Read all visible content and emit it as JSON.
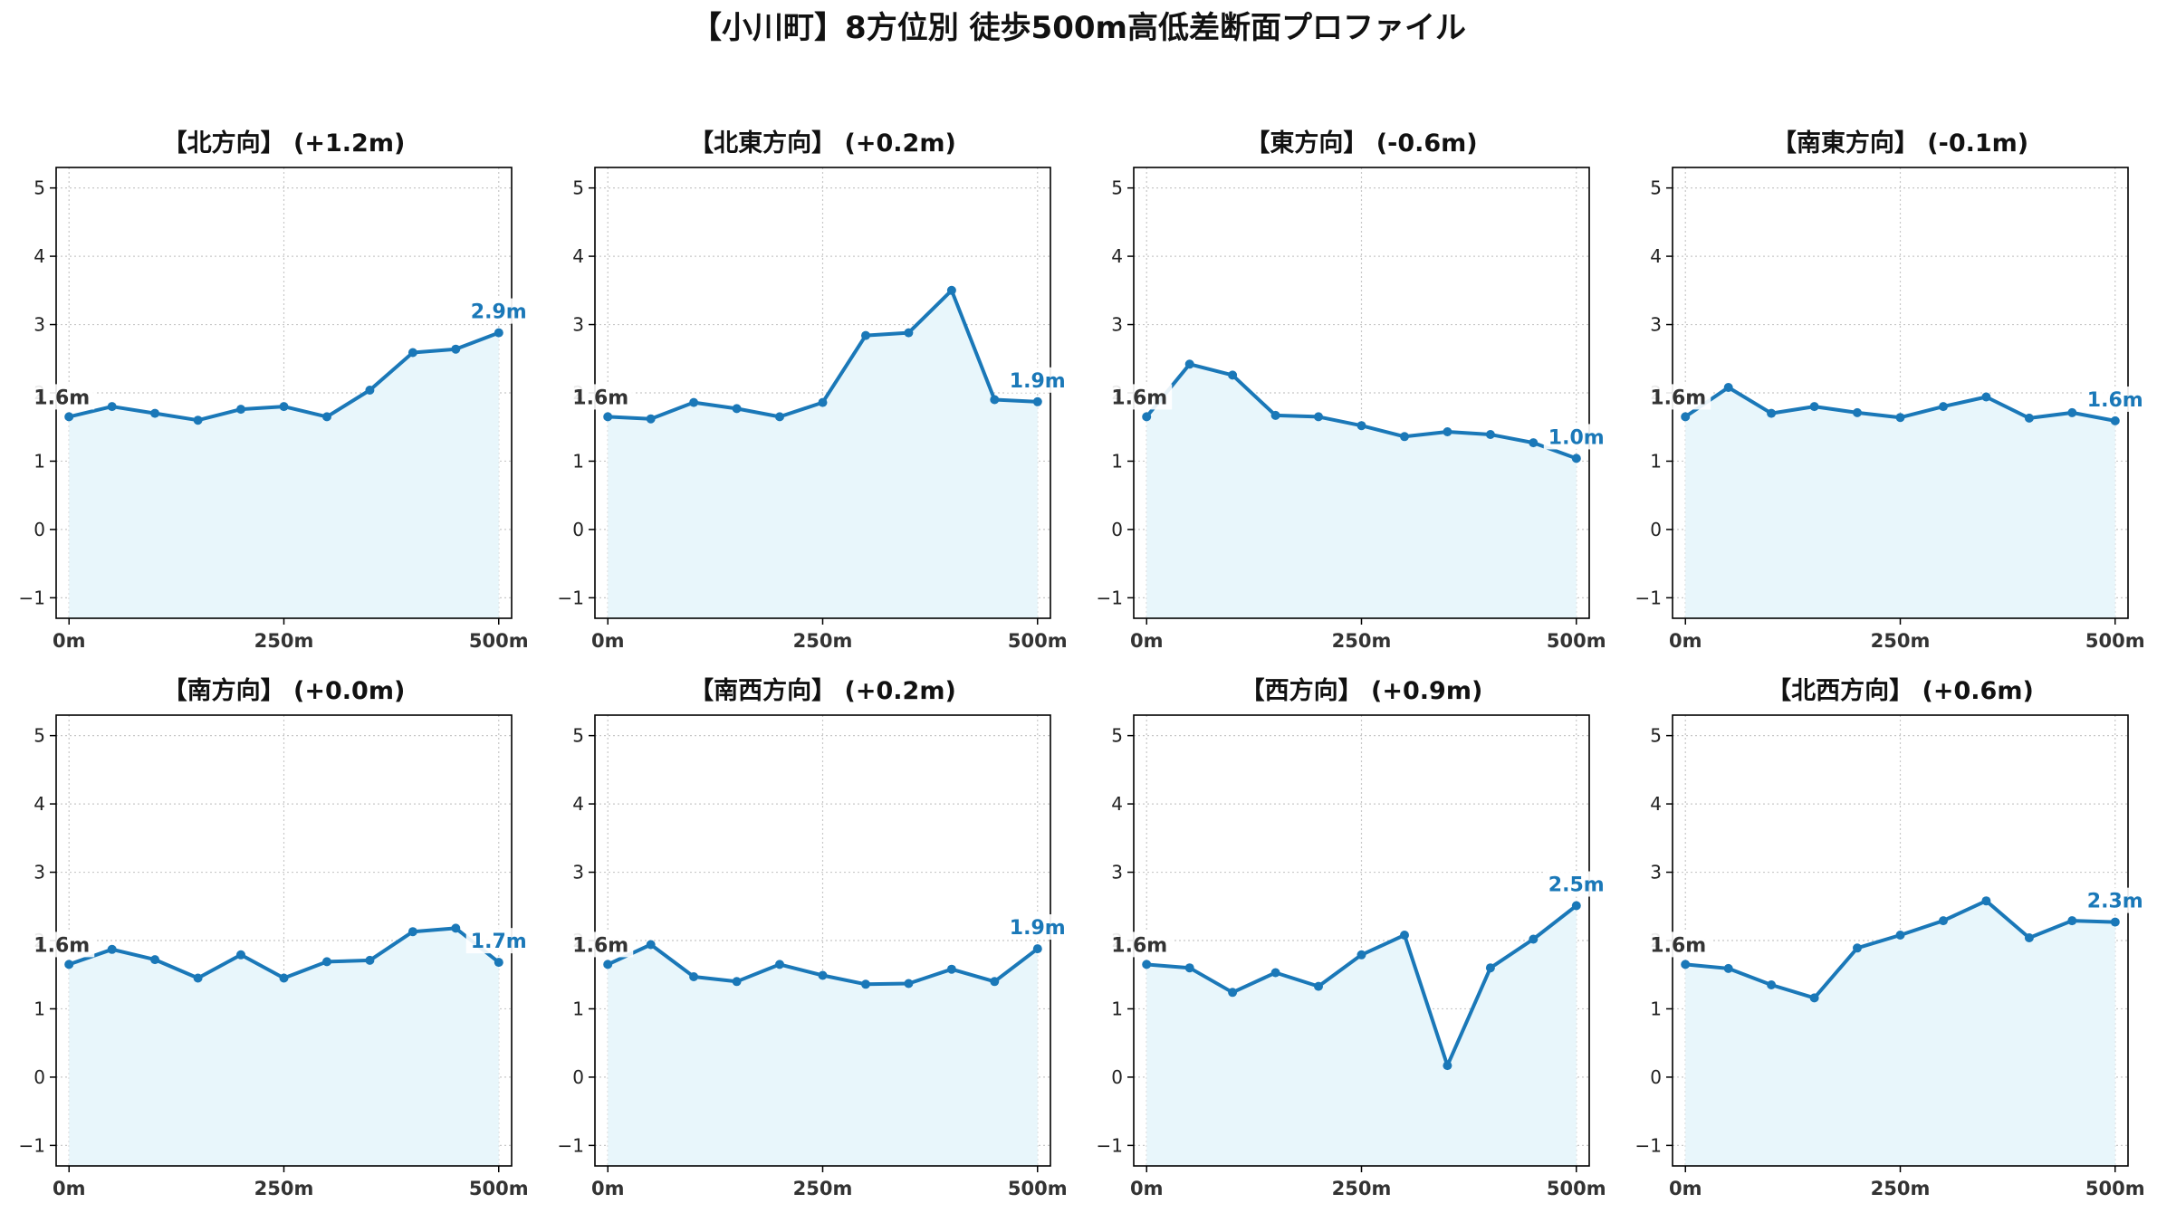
{
  "chart_data": {
    "title": "【小川町】8方位別 徒歩500m高低差断面プロファイル",
    "type": "line",
    "x": [
      0,
      50,
      100,
      150,
      200,
      250,
      300,
      350,
      400,
      450,
      500
    ],
    "xticks": [
      "0m",
      "250m",
      "500m"
    ],
    "xtick_values": [
      0,
      250,
      500
    ],
    "yticks": [
      "−1",
      "0",
      "1",
      "2",
      "3",
      "4",
      "5"
    ],
    "ytick_values": [
      -1,
      0,
      1,
      2,
      3,
      4,
      5
    ],
    "xlim": [
      -15,
      515
    ],
    "ylim": [
      -1.3,
      5.3
    ],
    "grid": true,
    "line_color": "#1a78b8",
    "fill_color": "#e8f6fb",
    "start_label_color": "#333333",
    "end_label_color": "#1a78b8",
    "panels": [
      {
        "title": "【北方向】 (+1.2m)",
        "start_label": "1.6m",
        "end_label": "2.9m",
        "values": [
          1.65,
          1.8,
          1.7,
          1.6,
          1.76,
          1.8,
          1.65,
          2.04,
          2.59,
          2.64,
          2.88
        ]
      },
      {
        "title": "【北東方向】 (+0.2m)",
        "start_label": "1.6m",
        "end_label": "1.9m",
        "values": [
          1.65,
          1.62,
          1.86,
          1.77,
          1.65,
          1.86,
          2.84,
          2.88,
          3.5,
          1.9,
          1.87
        ]
      },
      {
        "title": "【東方向】 (-0.6m)",
        "start_label": "1.6m",
        "end_label": "1.0m",
        "values": [
          1.65,
          2.42,
          2.26,
          1.67,
          1.65,
          1.52,
          1.36,
          1.43,
          1.39,
          1.27,
          1.04
        ]
      },
      {
        "title": "【南東方向】 (-0.1m)",
        "start_label": "1.6m",
        "end_label": "1.6m",
        "values": [
          1.65,
          2.08,
          1.7,
          1.8,
          1.71,
          1.64,
          1.8,
          1.94,
          1.63,
          1.71,
          1.59
        ]
      },
      {
        "title": "【南方向】 (+0.0m)",
        "start_label": "1.6m",
        "end_label": "1.7m",
        "values": [
          1.65,
          1.87,
          1.72,
          1.45,
          1.79,
          1.45,
          1.69,
          1.71,
          2.13,
          2.18,
          1.68
        ]
      },
      {
        "title": "【南西方向】 (+0.2m)",
        "start_label": "1.6m",
        "end_label": "1.9m",
        "values": [
          1.65,
          1.94,
          1.47,
          1.4,
          1.65,
          1.49,
          1.36,
          1.37,
          1.58,
          1.4,
          1.88
        ]
      },
      {
        "title": "【西方向】 (+0.9m)",
        "start_label": "1.6m",
        "end_label": "2.5m",
        "values": [
          1.65,
          1.6,
          1.24,
          1.53,
          1.33,
          1.79,
          2.08,
          0.17,
          1.6,
          2.02,
          2.51
        ]
      },
      {
        "title": "【北西方向】 (+0.6m)",
        "start_label": "1.6m",
        "end_label": "2.3m",
        "values": [
          1.65,
          1.59,
          1.35,
          1.16,
          1.89,
          2.08,
          2.29,
          2.58,
          2.04,
          2.29,
          2.27
        ]
      }
    ]
  }
}
